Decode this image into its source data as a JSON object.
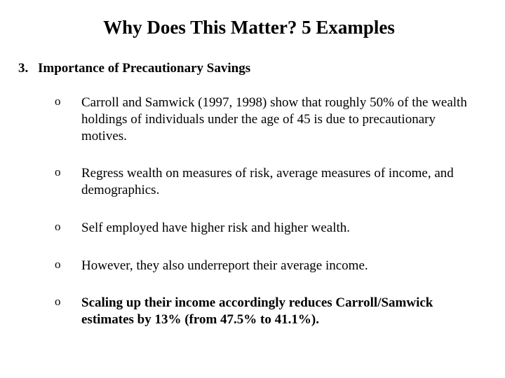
{
  "background_color": "#ffffff",
  "text_color": "#000000",
  "font_family": "Times New Roman",
  "title": "Why Does This Matter?  5 Examples",
  "title_fontsize": 27,
  "title_weight": "bold",
  "numbered": {
    "number": "3.",
    "label": "Importance of Precautionary Savings",
    "fontsize": 19,
    "weight": "bold"
  },
  "bullet_marker": "o",
  "bullet_fontsize": 19,
  "bullets": [
    {
      "text": "Carroll and Samwick (1997, 1998) show that roughly 50% of the wealth holdings of individuals under the age of 45 is due to precautionary motives.",
      "bold": false
    },
    {
      "text": "Regress wealth on measures of risk, average measures of income, and demographics.",
      "bold": false
    },
    {
      "text": "Self employed have higher risk and higher wealth.",
      "bold": false
    },
    {
      "text": "However, they also underreport their average income.",
      "bold": false
    },
    {
      "text": "Scaling up their income accordingly reduces Carroll/Samwick estimates by 13% (from 47.5% to 41.1%).",
      "bold": true
    }
  ]
}
